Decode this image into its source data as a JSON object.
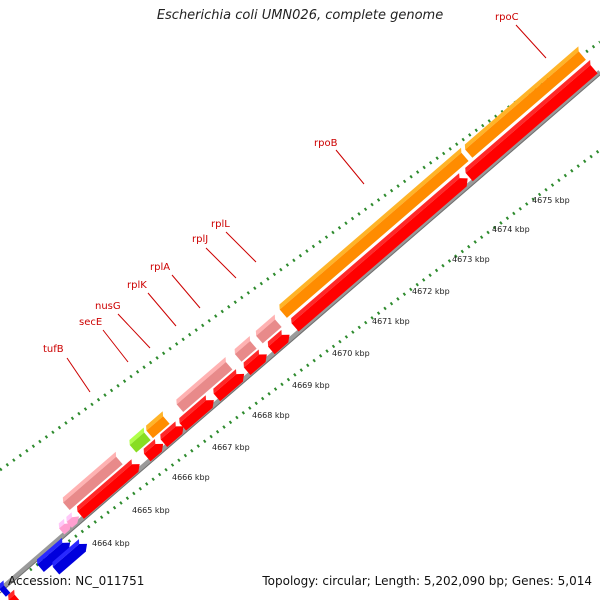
{
  "title": "Escherichia coli UMN026, complete genome",
  "footer": {
    "accession": "Accession: NC_011751",
    "summary": "Topology: circular; Length: 5,202,090 bp; Genes: 5,014"
  },
  "colors": {
    "backbone": "#8c8c8c",
    "tick_outer": "#2e8b2e",
    "tick_inner": "#2e8b2e",
    "label": "#cc0000",
    "cds": "#ff0000",
    "rrna_like": "#ff8c00",
    "trna": "#e88a8a",
    "pink": "#ff9fd0",
    "blue": "#0000dd",
    "green": "#88dd22"
  },
  "kbp_labels": [
    "4664 kbp",
    "4665 kbp",
    "4666 kbp",
    "4667 kbp",
    "4668 kbp",
    "4669 kbp",
    "4670 kbp",
    "4671 kbp",
    "4672 kbp",
    "4673 kbp",
    "4674 kbp",
    "4675 kbp"
  ],
  "gene_labels": [
    "tufB",
    "secE",
    "nusG",
    "rplK",
    "rplA",
    "rplJ",
    "rplL",
    "rpoB",
    "rpoC"
  ]
}
